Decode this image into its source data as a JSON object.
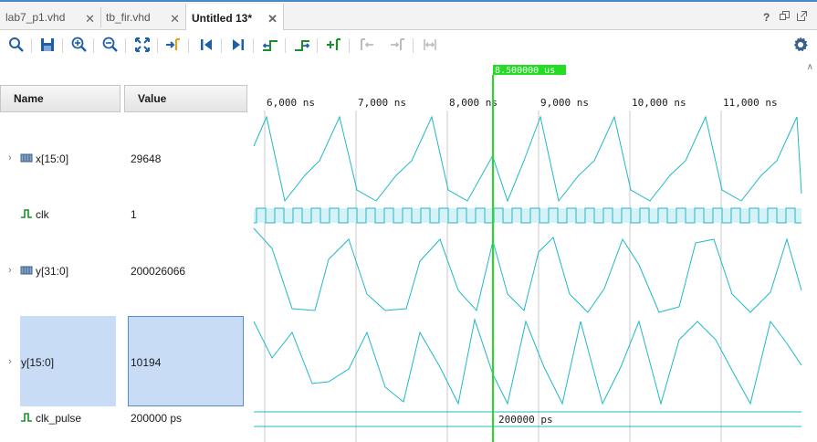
{
  "tabs": [
    {
      "label": "lab7_p1.vhd",
      "active": false
    },
    {
      "label": "tb_fir.vhd",
      "active": false
    },
    {
      "label": "Untitled 13*",
      "active": true
    }
  ],
  "window_controls": [
    "?",
    "restore",
    "float"
  ],
  "toolbar": [
    "search",
    "save",
    "zoom-in",
    "zoom-out",
    "zoom-fit",
    "go-to-cursor",
    "go-to-start",
    "go-to-end",
    "previous-transition",
    "next-transition",
    "add-marker",
    "previous-marker",
    "next-marker",
    "swap-cursors",
    "settings"
  ],
  "columns": {
    "name": "Name",
    "value": "Value"
  },
  "cursor": {
    "label": "8.500000 us",
    "time_ns": 8500
  },
  "timeline": {
    "start_ns": 5880,
    "end_ns": 11880,
    "ticks": [
      "6,000 ns",
      "7,000 ns",
      "8,000 ns",
      "9,000 ns",
      "10,000 ns",
      "11,000 ns"
    ]
  },
  "signals": [
    {
      "name": "x[15:0]",
      "value": "29648",
      "expandable": true,
      "type": "bus"
    },
    {
      "name": "clk",
      "value": "1",
      "expandable": false,
      "type": "bit"
    },
    {
      "name": "y[31:0]",
      "value": "200026066",
      "expandable": true,
      "type": "bus"
    },
    {
      "name": "y[15:0]",
      "value": "10194",
      "expandable": true,
      "type": "bus",
      "selected": true
    },
    {
      "name": "clk_pulse",
      "value": "200000 ps",
      "expandable": false,
      "type": "bit",
      "bus_text": "200000 ps"
    }
  ],
  "colors": {
    "wave": "#1fb8c8",
    "cursor": "#22dd22",
    "grid": "#c8c8c8",
    "selection": "#c9dcf6"
  }
}
